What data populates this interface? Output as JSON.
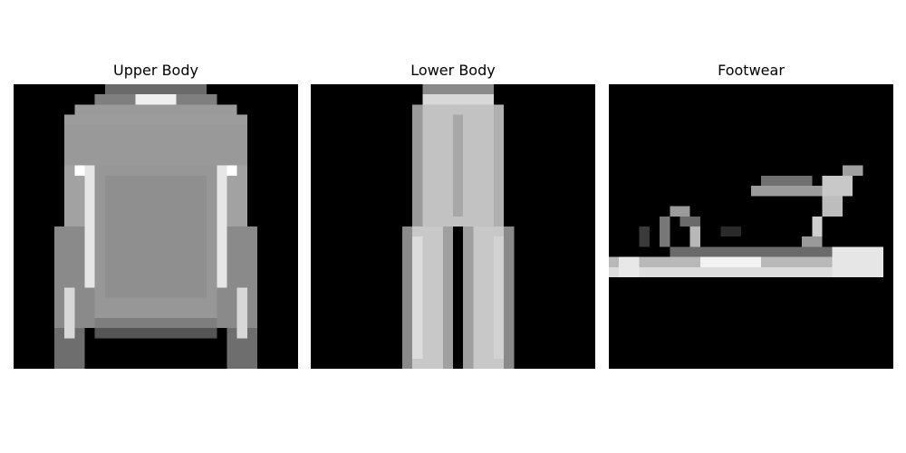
{
  "panels": [
    {
      "title": "Upper Body",
      "image": "long-sleeve-top"
    },
    {
      "title": "Lower Body",
      "image": "trousers"
    },
    {
      "title": "Footwear",
      "image": "sandal"
    }
  ],
  "colors": {
    "background": "#ffffff",
    "image_background": "#000000",
    "title_text": "#000000"
  }
}
